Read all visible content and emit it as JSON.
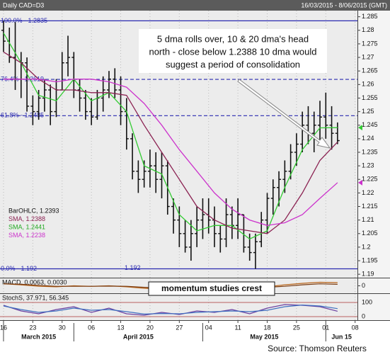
{
  "chart_data": {
    "type": "ohlc",
    "header_left": "Daily CAD=D3",
    "header_right": "16/03/2015 - 8/06/2015 (GMT)",
    "annotation": [
      "5 dma rolls over, 10 & 20 dma's head",
      "north - close below 1.2388 10 dma would",
      "suggest a period of consolidation"
    ],
    "callout": "momentum studies crest",
    "source": "Source: Thomson Reuters",
    "x": [
      0,
      1,
      2,
      3,
      4,
      5,
      6,
      7,
      8,
      9,
      10,
      11,
      12,
      13,
      14,
      15,
      16,
      17,
      18,
      19,
      20,
      21,
      22,
      23,
      24,
      25,
      26,
      27,
      28,
      29,
      30,
      31,
      32,
      33,
      34,
      35,
      36,
      37,
      38,
      39,
      40,
      41,
      42,
      43,
      44,
      45,
      46,
      47,
      48,
      49,
      50,
      51,
      52,
      53,
      54,
      55,
      56,
      57
    ],
    "open": [
      1.28,
      1.276,
      1.27,
      1.262,
      1.268,
      1.252,
      1.25,
      1.255,
      1.258,
      1.25,
      1.258,
      1.268,
      1.27,
      1.258,
      1.255,
      1.25,
      1.248,
      1.255,
      1.258,
      1.262,
      1.258,
      1.25,
      1.24,
      1.228,
      1.225,
      1.228,
      1.23,
      1.225,
      1.23,
      1.215,
      1.21,
      1.205,
      1.2,
      1.205,
      1.21,
      1.212,
      1.21,
      1.205,
      1.203,
      1.212,
      1.208,
      1.212,
      1.2,
      1.198,
      1.202,
      1.21,
      1.218,
      1.222,
      1.225,
      1.228,
      1.235,
      1.238,
      1.245,
      1.242,
      1.245,
      1.248,
      1.245,
      1.242
    ],
    "high": [
      1.2835,
      1.281,
      1.283,
      1.272,
      1.27,
      1.256,
      1.258,
      1.262,
      1.26,
      1.262,
      1.272,
      1.278,
      1.272,
      1.262,
      1.258,
      1.255,
      1.258,
      1.263,
      1.265,
      1.266,
      1.263,
      1.255,
      1.242,
      1.232,
      1.232,
      1.236,
      1.235,
      1.235,
      1.232,
      1.218,
      1.215,
      1.21,
      1.21,
      1.215,
      1.218,
      1.218,
      1.215,
      1.208,
      1.218,
      1.215,
      1.218,
      1.212,
      1.205,
      1.205,
      1.213,
      1.22,
      1.225,
      1.228,
      1.232,
      1.238,
      1.242,
      1.25,
      1.252,
      1.25,
      1.254,
      1.257,
      1.252,
      1.246
    ],
    "low": [
      1.272,
      1.268,
      1.258,
      1.255,
      1.25,
      1.245,
      1.247,
      1.25,
      1.245,
      1.248,
      1.258,
      1.263,
      1.255,
      1.25,
      1.247,
      1.245,
      1.247,
      1.25,
      1.255,
      1.255,
      1.245,
      1.236,
      1.225,
      1.22,
      1.222,
      1.222,
      1.22,
      1.218,
      1.212,
      1.205,
      1.2,
      1.198,
      1.195,
      1.2,
      1.203,
      1.205,
      1.2,
      1.198,
      1.2,
      1.203,
      1.203,
      1.198,
      1.195,
      1.192,
      1.2,
      1.205,
      1.212,
      1.215,
      1.22,
      1.225,
      1.23,
      1.235,
      1.238,
      1.235,
      1.238,
      1.24,
      1.236,
      1.238
    ],
    "close": [
      1.276,
      1.27,
      1.262,
      1.268,
      1.252,
      1.25,
      1.255,
      1.258,
      1.25,
      1.258,
      1.268,
      1.27,
      1.258,
      1.255,
      1.25,
      1.248,
      1.255,
      1.258,
      1.262,
      1.258,
      1.25,
      1.24,
      1.228,
      1.225,
      1.228,
      1.23,
      1.225,
      1.23,
      1.215,
      1.21,
      1.205,
      1.2,
      1.205,
      1.21,
      1.212,
      1.21,
      1.205,
      1.203,
      1.212,
      1.208,
      1.212,
      1.2,
      1.198,
      1.202,
      1.21,
      1.218,
      1.222,
      1.225,
      1.228,
      1.235,
      1.238,
      1.245,
      1.242,
      1.245,
      1.248,
      1.245,
      1.242,
      1.2393
    ],
    "bar_color": "#111111",
    "series": [
      {
        "name": "SMA",
        "color": "#33cc33",
        "marker": true,
        "x": [
          0,
          3,
          6,
          9,
          12,
          15,
          18,
          21,
          24,
          27,
          30,
          33,
          36,
          39,
          42,
          45,
          48,
          51,
          54,
          57
        ],
        "values": [
          1.279,
          1.268,
          1.256,
          1.254,
          1.262,
          1.254,
          1.257,
          1.25,
          1.23,
          1.227,
          1.212,
          1.206,
          1.208,
          1.208,
          1.203,
          1.206,
          1.222,
          1.236,
          1.244,
          1.2441
        ]
      },
      {
        "name": "SMA",
        "color": "#8b2252",
        "marker": false,
        "x": [
          0,
          3,
          6,
          9,
          12,
          15,
          18,
          21,
          24,
          27,
          30,
          33,
          36,
          39,
          42,
          45,
          48,
          51,
          54,
          57
        ],
        "values": [
          1.272,
          1.268,
          1.262,
          1.258,
          1.258,
          1.257,
          1.257,
          1.256,
          1.245,
          1.235,
          1.225,
          1.215,
          1.21,
          1.207,
          1.206,
          1.205,
          1.21,
          1.22,
          1.232,
          1.2388
        ]
      },
      {
        "name": "SMA",
        "color": "#cc33cc",
        "marker": true,
        "x": [
          0,
          3,
          6,
          9,
          12,
          15,
          18,
          21,
          24,
          27,
          30,
          33,
          36,
          39,
          42,
          45,
          48,
          51,
          54,
          57
        ],
        "values": [
          1.262,
          1.262,
          1.262,
          1.261,
          1.262,
          1.262,
          1.261,
          1.259,
          1.253,
          1.245,
          1.236,
          1.228,
          1.22,
          1.214,
          1.21,
          1.208,
          1.209,
          1.212,
          1.218,
          1.2238
        ]
      }
    ],
    "legend": [
      {
        "label": "BarOHLC, 1.2393",
        "color": "#111111"
      },
      {
        "label": "SMA, 1.2388",
        "color": "#8b2252"
      },
      {
        "label": "SMA, 1.2441",
        "color": "#22aa22"
      },
      {
        "label": "SMA, 1.2238",
        "color": "#cc33cc"
      }
    ],
    "fib_levels": [
      {
        "value": 1.2835,
        "label": "100.0% - 1.2835"
      },
      {
        "value": 1.2619,
        "label": "76.4% - 1.2619"
      },
      {
        "value": 1.2485,
        "label": "61.8% - 1.2485"
      },
      {
        "value": 1.192,
        "label": "0.0% - 1.192"
      }
    ],
    "low_label": {
      "value": 1.192,
      "label": "1.192"
    },
    "xlim": [
      -0.6,
      60.4
    ],
    "xticks": [
      {
        "value": 0,
        "label": "16"
      },
      {
        "value": 5,
        "label": "23"
      },
      {
        "value": 10,
        "label": "30"
      },
      {
        "value": 15,
        "label": "06"
      },
      {
        "value": 20,
        "label": "13"
      },
      {
        "value": 25,
        "label": "20"
      },
      {
        "value": 30,
        "label": "27"
      },
      {
        "value": 35,
        "label": "04"
      },
      {
        "value": 40,
        "label": "11"
      },
      {
        "value": 45,
        "label": "18"
      },
      {
        "value": 50,
        "label": "25"
      },
      {
        "value": 55,
        "label": "01"
      },
      {
        "value": 60,
        "label": "08"
      }
    ],
    "month_ticks": [
      {
        "value": 0,
        "label": "March 2015"
      },
      {
        "value": 12,
        "label": "April 2015"
      },
      {
        "value": 34,
        "label": "May 2015"
      },
      {
        "value": 55,
        "label": "Jun 15"
      }
    ],
    "ylim": [
      1.189,
      1.287
    ],
    "yticks": [
      1.19,
      1.195,
      1.2,
      1.205,
      1.21,
      1.215,
      1.22,
      1.225,
      1.23,
      1.235,
      1.24,
      1.245,
      1.25,
      1.255,
      1.26,
      1.265,
      1.27,
      1.275,
      1.28,
      1.285
    ],
    "macd": {
      "label": "MACD, 0.0063, 0.0030",
      "ylim": [
        -0.012,
        0.012
      ],
      "yticks": [
        0
      ],
      "series": [
        {
          "color": "#b8651b",
          "x": [
            0,
            3,
            6,
            9,
            12,
            15,
            18,
            21,
            24,
            27,
            30,
            33,
            36,
            39,
            42,
            45,
            48,
            51,
            54,
            57
          ],
          "values": [
            0.004,
            0.002,
            -0.001,
            -0.002,
            0.0,
            -0.001,
            0.0,
            -0.002,
            -0.005,
            -0.006,
            -0.007,
            -0.006,
            -0.005,
            -0.003,
            -0.003,
            -0.002,
            0.002,
            0.005,
            0.007,
            0.0063
          ]
        },
        {
          "color": "#7a3b10",
          "x": [
            0,
            3,
            6,
            9,
            12,
            15,
            18,
            21,
            24,
            27,
            30,
            33,
            36,
            39,
            42,
            45,
            48,
            51,
            54,
            57
          ],
          "values": [
            0.004,
            0.003,
            0.001,
            -0.001,
            -0.001,
            -0.001,
            -0.0005,
            -0.001,
            -0.003,
            -0.005,
            -0.006,
            -0.006,
            -0.005,
            -0.004,
            -0.003,
            -0.003,
            -0.001,
            0.002,
            0.004,
            0.003
          ]
        }
      ]
    },
    "stochastic": {
      "label": "StochS, 37.971, 56.345",
      "ylim": [
        0,
        100
      ],
      "yticks": [
        0,
        100
      ],
      "series": [
        {
          "color": "#6a3fa0",
          "x": [
            0,
            3,
            6,
            9,
            12,
            15,
            18,
            21,
            24,
            27,
            30,
            33,
            36,
            39,
            42,
            45,
            48,
            51,
            54,
            57
          ],
          "values": [
            80,
            40,
            20,
            50,
            70,
            30,
            60,
            20,
            10,
            30,
            15,
            40,
            30,
            50,
            20,
            60,
            85,
            80,
            70,
            37.971
          ]
        },
        {
          "color": "#3f6fc0",
          "x": [
            0,
            3,
            6,
            9,
            12,
            15,
            18,
            21,
            24,
            27,
            30,
            33,
            36,
            39,
            42,
            45,
            48,
            51,
            54,
            57
          ],
          "values": [
            75,
            50,
            30,
            40,
            60,
            45,
            50,
            35,
            18,
            22,
            20,
            30,
            35,
            40,
            35,
            45,
            70,
            82,
            75,
            56.345
          ]
        }
      ]
    }
  }
}
